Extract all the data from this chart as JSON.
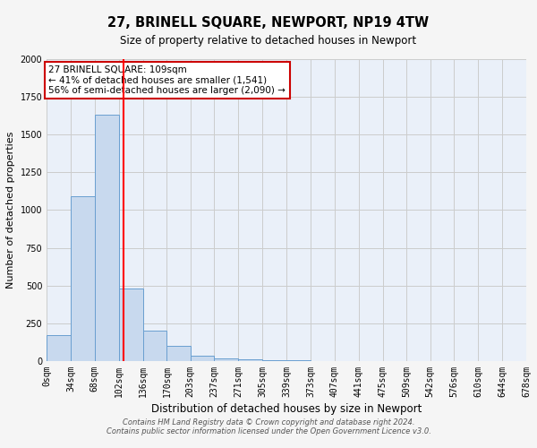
{
  "title": "27, BRINELL SQUARE, NEWPORT, NP19 4TW",
  "subtitle": "Size of property relative to detached houses in Newport",
  "xlabel": "Distribution of detached houses by size in Newport",
  "ylabel": "Number of detached properties",
  "bin_edges": [
    0,
    34,
    68,
    102,
    136,
    170,
    203,
    237,
    271,
    305,
    339,
    373,
    407,
    441,
    475,
    509,
    542,
    576,
    610,
    644,
    678
  ],
  "bin_counts": [
    170,
    1090,
    1630,
    480,
    200,
    100,
    35,
    20,
    10,
    5,
    3,
    2,
    1,
    1,
    1,
    0,
    0,
    0,
    0,
    0
  ],
  "bar_color": "#c8d9ee",
  "bar_edge_color": "#6a9fd0",
  "grid_color": "#cccccc",
  "bg_color": "#eaf0f9",
  "fig_bg_color": "#f5f5f5",
  "red_line_x": 109,
  "annotation_text": "27 BRINELL SQUARE: 109sqm\n← 41% of detached houses are smaller (1,541)\n56% of semi-detached houses are larger (2,090) →",
  "annotation_box_color": "#ffffff",
  "annotation_box_edge": "#cc0000",
  "footer_line1": "Contains HM Land Registry data © Crown copyright and database right 2024.",
  "footer_line2": "Contains public sector information licensed under the Open Government Licence v3.0.",
  "ylim": [
    0,
    2000
  ],
  "tick_labels": [
    "0sqm",
    "34sqm",
    "68sqm",
    "102sqm",
    "136sqm",
    "170sqm",
    "203sqm",
    "237sqm",
    "271sqm",
    "305sqm",
    "339sqm",
    "373sqm",
    "407sqm",
    "441sqm",
    "475sqm",
    "509sqm",
    "542sqm",
    "576sqm",
    "610sqm",
    "644sqm",
    "678sqm"
  ],
  "title_fontsize": 10.5,
  "subtitle_fontsize": 8.5,
  "xlabel_fontsize": 8.5,
  "ylabel_fontsize": 8,
  "tick_fontsize": 7,
  "annot_fontsize": 7.5,
  "footer_fontsize": 6
}
